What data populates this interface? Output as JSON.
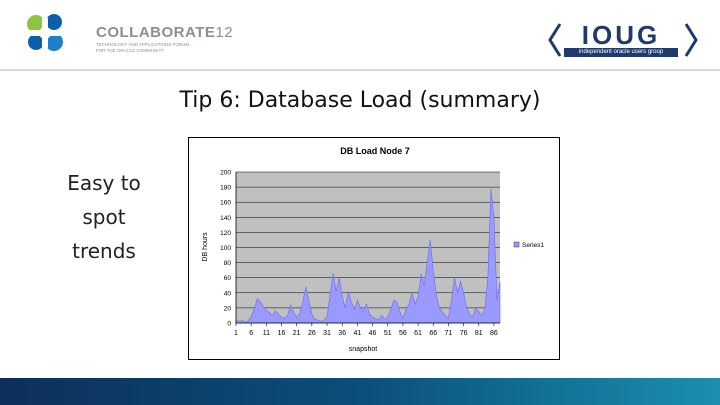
{
  "header": {
    "event_name": "COLLABORATE",
    "event_year": "12",
    "tagline_1": "TECHNOLOGY AND APPLICATIONS FORUM",
    "tagline_2": "FOR THE ORACLE COMMUNITY",
    "sponsor_name": "IOUG",
    "sponsor_tagline": "independent oracle users group"
  },
  "slide": {
    "title": "Tip 6: Database Load (summary)",
    "side_text_1": "Easy to",
    "side_text_2": "spot",
    "side_text_3": "trends"
  },
  "colors": {
    "area_fill": "#9999ff",
    "plot_bg": "#c0c0c0",
    "accent": "#1f3a6e"
  },
  "chart_data": {
    "type": "area",
    "title": "DB Load Node 7",
    "xlabel": "snapshot",
    "ylabel": "DB hours",
    "ylim": [
      0,
      200
    ],
    "yticks": [
      0,
      20,
      40,
      60,
      80,
      100,
      120,
      140,
      160,
      180,
      200
    ],
    "xticks": [
      1,
      6,
      11,
      16,
      21,
      26,
      31,
      36,
      41,
      46,
      51,
      56,
      61,
      66,
      71,
      76,
      81,
      86
    ],
    "legend": "right",
    "grid": true,
    "series": [
      {
        "name": "Series1",
        "x": [
          1,
          2,
          3,
          4,
          5,
          6,
          7,
          8,
          9,
          10,
          11,
          12,
          13,
          14,
          15,
          16,
          17,
          18,
          19,
          20,
          21,
          22,
          23,
          24,
          25,
          26,
          27,
          28,
          29,
          30,
          31,
          32,
          33,
          34,
          35,
          36,
          37,
          38,
          39,
          40,
          41,
          42,
          43,
          44,
          45,
          46,
          47,
          48,
          49,
          50,
          51,
          52,
          53,
          54,
          55,
          56,
          57,
          58,
          59,
          60,
          61,
          62,
          63,
          64,
          65,
          66,
          67,
          68,
          69,
          70,
          71,
          72,
          73,
          74,
          75,
          76,
          77,
          78,
          79,
          80,
          81,
          82,
          83,
          84,
          85,
          86,
          87,
          88
        ],
        "values": [
          3,
          3,
          3,
          2,
          3,
          8,
          18,
          32,
          28,
          22,
          16,
          14,
          10,
          16,
          12,
          8,
          6,
          10,
          24,
          14,
          8,
          12,
          28,
          48,
          30,
          12,
          5,
          4,
          2,
          4,
          8,
          38,
          66,
          42,
          60,
          35,
          20,
          42,
          28,
          18,
          30,
          20,
          15,
          25,
          12,
          8,
          6,
          4,
          10,
          5,
          8,
          18,
          30,
          28,
          15,
          6,
          18,
          25,
          40,
          25,
          35,
          65,
          50,
          80,
          110,
          70,
          38,
          20,
          15,
          10,
          6,
          30,
          60,
          40,
          55,
          40,
          20,
          12,
          8,
          20,
          15,
          10,
          18,
          60,
          178,
          140,
          30,
          55
        ]
      }
    ]
  }
}
